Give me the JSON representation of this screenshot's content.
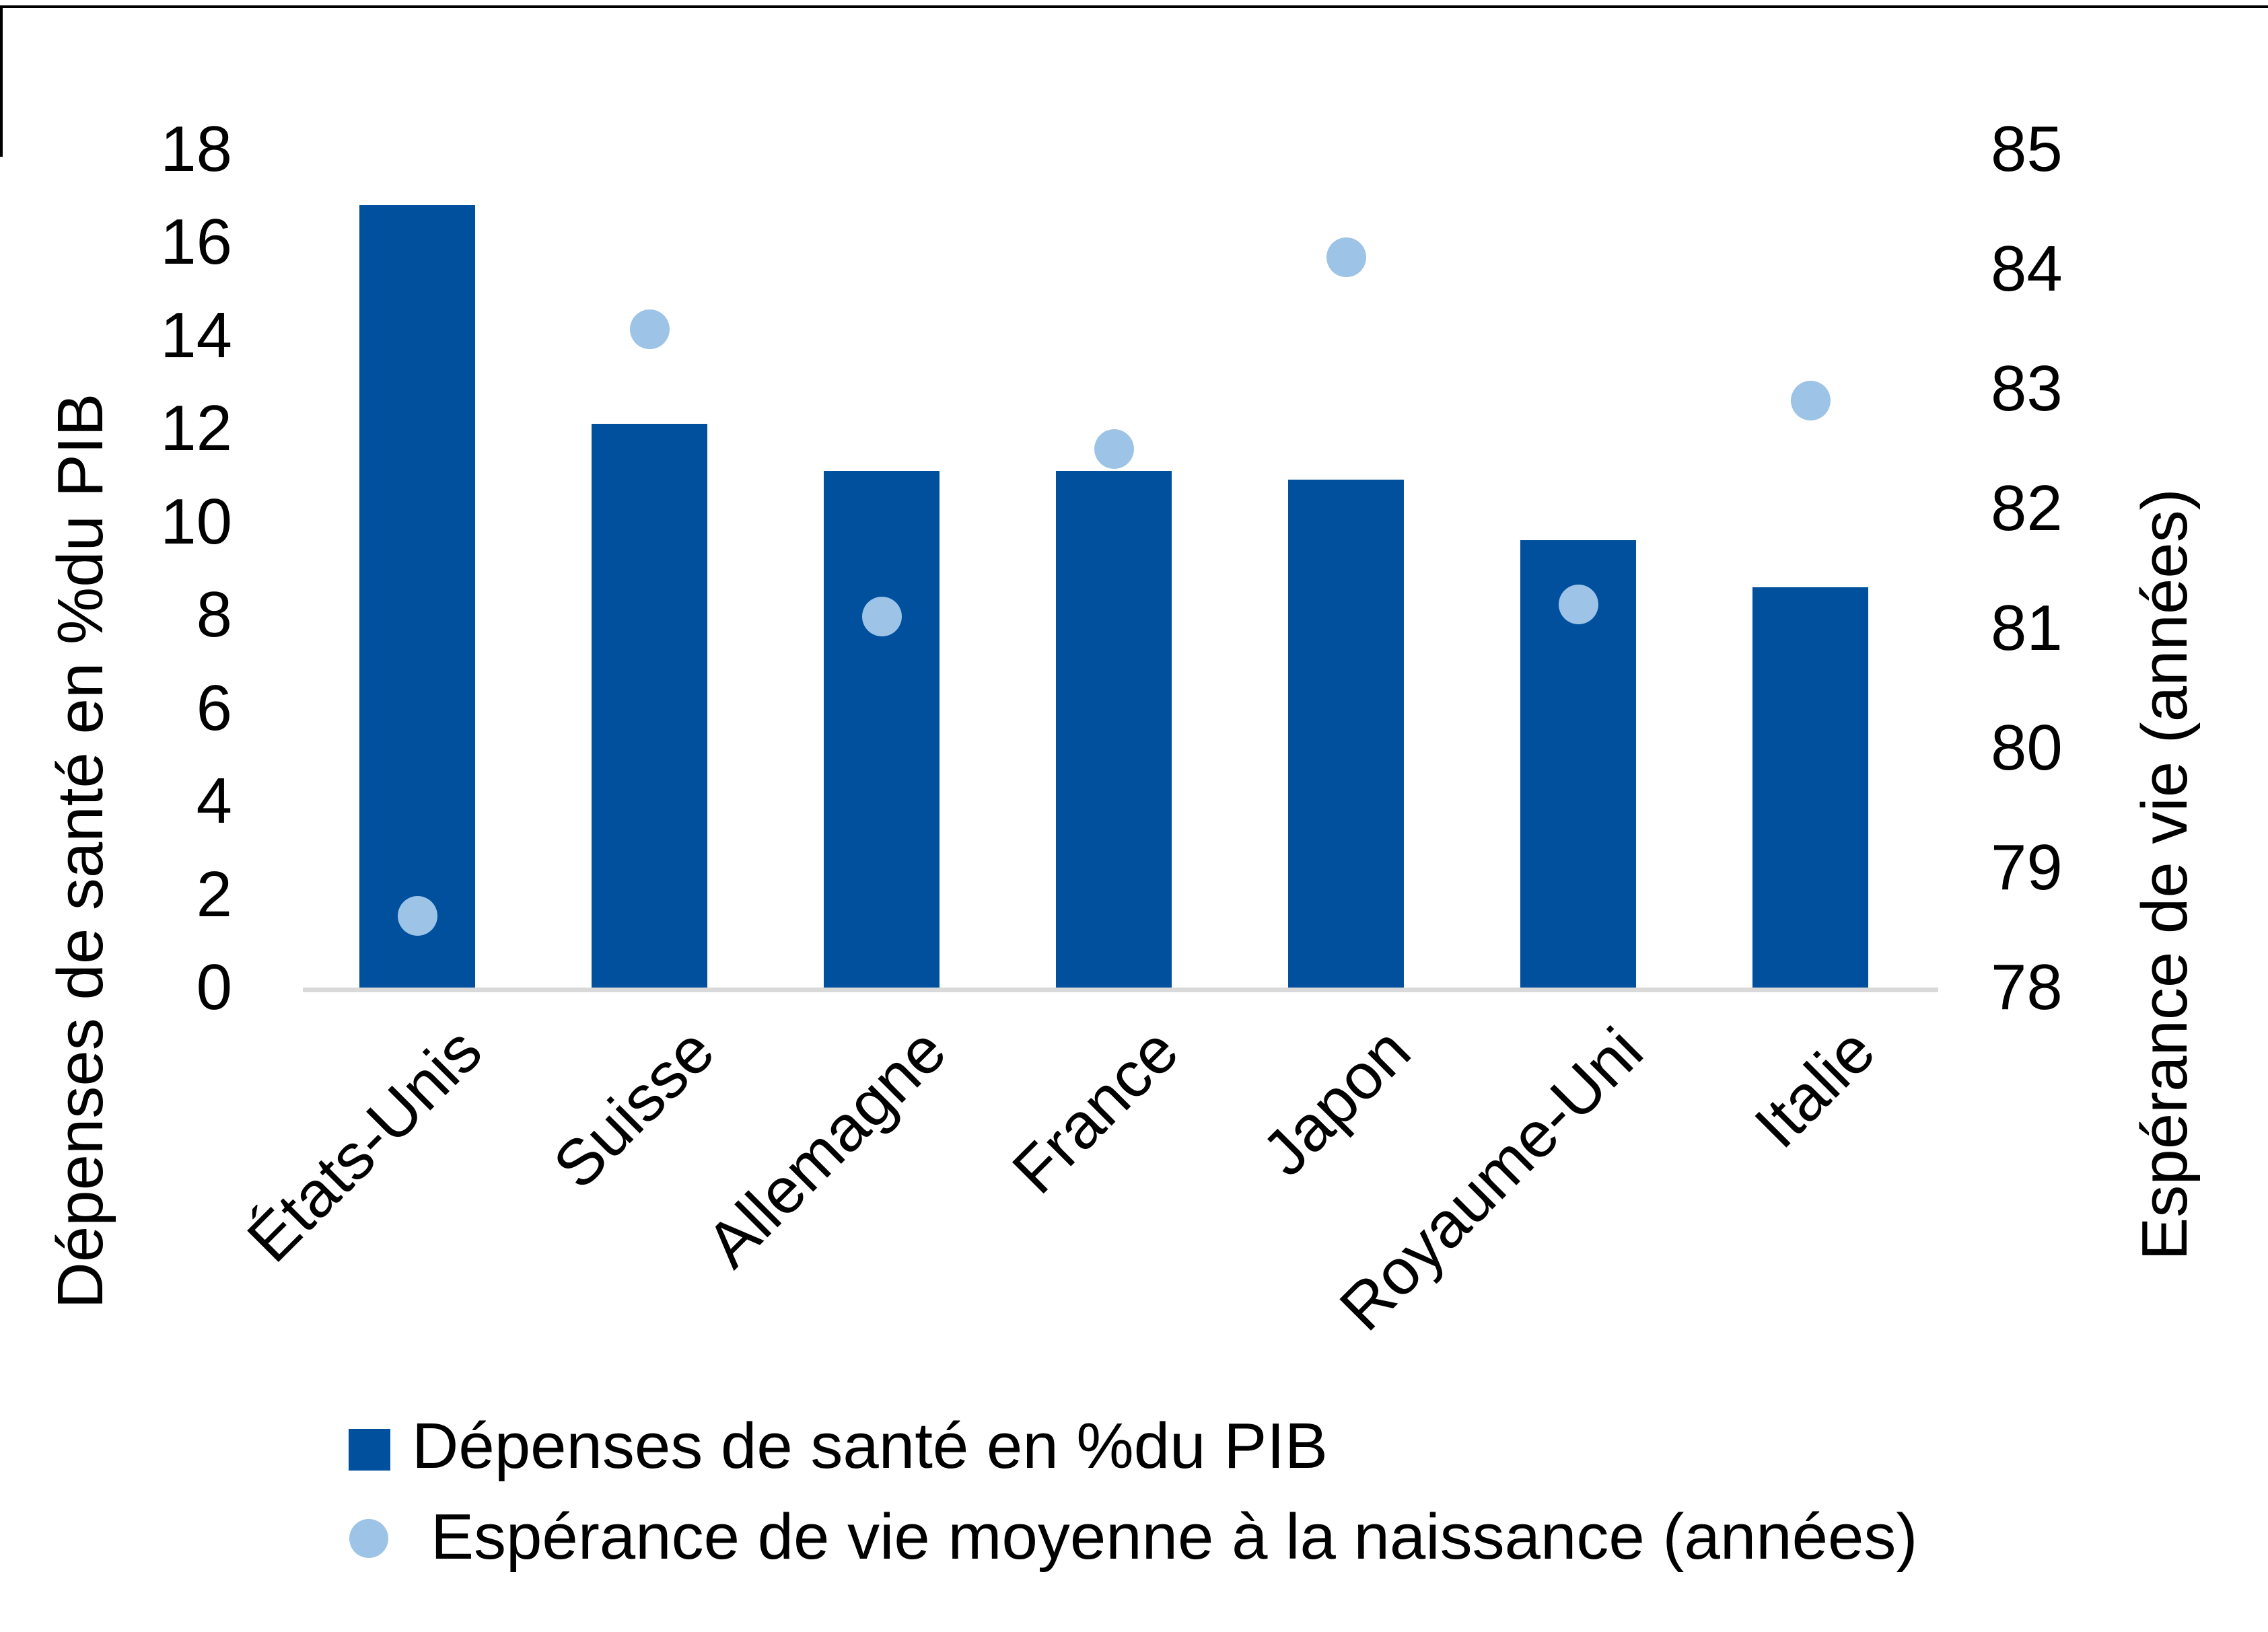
{
  "chart_data": {
    "type": "bar+scatter",
    "title": "",
    "categories": [
      "États-Unis",
      "Suisse",
      "Allemagne",
      "France",
      "Japon",
      "Royaume-Uni",
      "Italie"
    ],
    "series": [
      {
        "name": "Dépenses de santé en %du PIB",
        "type": "bar",
        "axis": "left",
        "color": "#00509E",
        "values": [
          16.8,
          12.1,
          11.1,
          11.1,
          10.9,
          9.6,
          8.6
        ]
      },
      {
        "name": "Espérance de vie moyenne à la naissance (années)",
        "type": "scatter",
        "axis": "right",
        "color": "#9DC3E6",
        "values": [
          78.6,
          83.5,
          81.1,
          82.5,
          84.1,
          81.2,
          82.9
        ]
      }
    ],
    "left_axis": {
      "title": "Dépenses de santé en %du PIB",
      "min": 0,
      "max": 18,
      "step": 2,
      "tick_labels": [
        "18",
        "16",
        "14",
        "12",
        "10",
        "8",
        "6",
        "4",
        "2",
        "0"
      ]
    },
    "right_axis": {
      "title": "Espérance de vie (années)",
      "min": 78,
      "max": 85,
      "step": 1,
      "tick_labels": [
        "85",
        "84",
        "83",
        "82",
        "81",
        "80",
        "79",
        "78"
      ]
    },
    "legend": {
      "position": "bottom-left",
      "entries": [
        {
          "marker": "square",
          "label": "Dépenses de santé en %du PIB",
          "color": "#00509E"
        },
        {
          "marker": "circle",
          "label": "Espérance de vie moyenne à la naissance (années)",
          "color": "#9DC3E6"
        }
      ]
    },
    "grid": false,
    "background": "#FFFFFF",
    "baseline_color": "#D9D9D9",
    "text_color": "#000000"
  }
}
